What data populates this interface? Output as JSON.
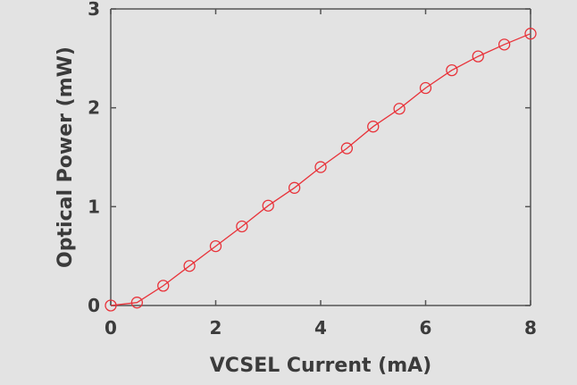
{
  "chart_data": {
    "type": "line",
    "title": "",
    "xlabel": "VCSEL Current (mA)",
    "ylabel": "Optical Power (mW)",
    "xlim": [
      0,
      8
    ],
    "ylim": [
      0,
      3
    ],
    "xticks": [
      "0",
      "2",
      "4",
      "6",
      "8"
    ],
    "yticks": [
      "0",
      "1",
      "2",
      "3"
    ],
    "grid": false,
    "legend": "none",
    "series": [
      {
        "color": "#e8333a",
        "marker": "circle",
        "x": [
          0,
          0.5,
          1,
          1.5,
          2,
          2.5,
          3,
          3.5,
          4,
          4.5,
          5,
          5.5,
          6,
          6.5,
          7,
          7.5,
          8
        ],
        "y": [
          0.0,
          0.03,
          0.2,
          0.4,
          0.6,
          0.8,
          1.01,
          1.19,
          1.4,
          1.59,
          1.81,
          1.99,
          2.2,
          2.38,
          2.52,
          2.64,
          2.75
        ]
      }
    ]
  }
}
